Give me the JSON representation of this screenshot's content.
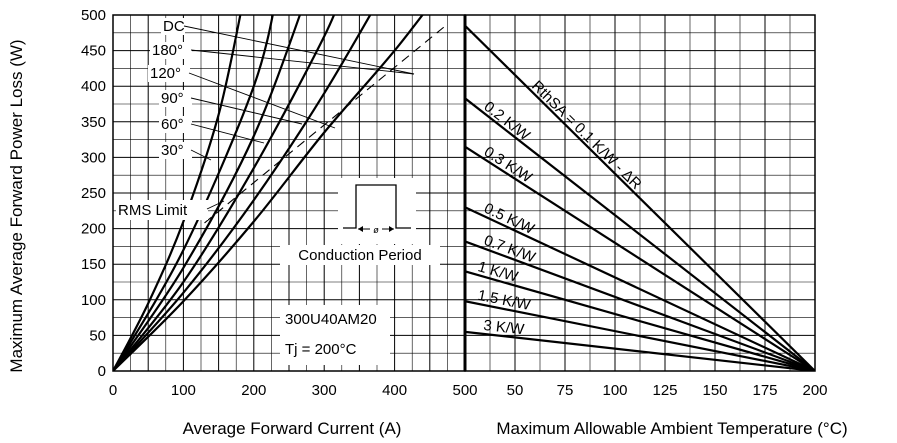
{
  "chart_data": [
    {
      "type": "line",
      "title": "",
      "xlabel": "Average Forward Current (A)",
      "ylabel": "Maximum Average Forward Power Loss (W)",
      "xlim": [
        0,
        500
      ],
      "ylim": [
        0,
        500
      ],
      "xticks": [
        0,
        100,
        200,
        300,
        400,
        500
      ],
      "yticks": [
        0,
        50,
        100,
        150,
        200,
        250,
        300,
        350,
        400,
        450,
        500
      ],
      "grid": true,
      "series": [
        {
          "name": "DC",
          "points": [
            [
              0,
              0
            ],
            [
              100,
              98
            ],
            [
              200,
              210
            ],
            [
              300,
              335
            ],
            [
              400,
              450
            ],
            [
              470,
              540
            ]
          ]
        },
        {
          "name": "180°",
          "points": [
            [
              0,
              0
            ],
            [
              100,
              110
            ],
            [
              200,
              240
            ],
            [
              300,
              390
            ],
            [
              400,
              560
            ]
          ]
        },
        {
          "name": "120°",
          "points": [
            [
              0,
              0
            ],
            [
              100,
              125
            ],
            [
              200,
              285
            ],
            [
              300,
              470
            ],
            [
              330,
              545
            ]
          ]
        },
        {
          "name": "90°",
          "points": [
            [
              0,
              0
            ],
            [
              100,
              145
            ],
            [
              200,
              330
            ],
            [
              280,
              540
            ]
          ]
        },
        {
          "name": "60°",
          "points": [
            [
              0,
              0
            ],
            [
              100,
              170
            ],
            [
              200,
              400
            ],
            [
              235,
              540
            ]
          ]
        },
        {
          "name": "30°",
          "points": [
            [
              0,
              0
            ],
            [
              50,
              95
            ],
            [
              100,
              210
            ],
            [
              150,
              360
            ],
            [
              185,
              520
            ]
          ]
        }
      ],
      "rms_limit": {
        "label": "RMS Limit",
        "points": [
          [
            130,
            208
          ],
          [
            470,
            483
          ]
        ]
      },
      "curve_labels": [
        "DC",
        "180°",
        "120°",
        "90°",
        "60°",
        "30°"
      ],
      "inset_label": "Conduction Period",
      "inset_symbol": "ø",
      "annotations": [
        "300U40AM20",
        "Tj = 200°C"
      ]
    },
    {
      "type": "line",
      "title": "",
      "xlabel": "Maximum Allowable Ambient Temperature (°C)",
      "ylabel": "",
      "xlim": [
        25,
        200
      ],
      "ylim": [
        0,
        500
      ],
      "xticks": [
        25,
        50,
        75,
        100,
        125,
        150,
        175,
        200
      ],
      "xtick_labels": [
        "",
        "50",
        "75",
        "100",
        "125",
        "150",
        "175",
        "200"
      ],
      "grid": true,
      "series": [
        {
          "name": "RthSA = 0.1 K/W - ΔR",
          "points": [
            [
              25,
              485
            ],
            [
              200,
              0
            ]
          ]
        },
        {
          "name": "0.2 K/W",
          "points": [
            [
              25,
              383
            ],
            [
              200,
              0
            ]
          ]
        },
        {
          "name": "0.3 K/W",
          "points": [
            [
              25,
              315
            ],
            [
              200,
              0
            ]
          ]
        },
        {
          "name": "0.5 K/W",
          "points": [
            [
              25,
              230
            ],
            [
              200,
              0
            ]
          ]
        },
        {
          "name": "0.7 K/W",
          "points": [
            [
              25,
              182
            ],
            [
              200,
              0
            ]
          ]
        },
        {
          "name": "1 K/W",
          "points": [
            [
              25,
              140
            ],
            [
              200,
              0
            ]
          ]
        },
        {
          "name": "1.5 K/W",
          "points": [
            [
              25,
              98
            ],
            [
              200,
              0
            ]
          ]
        },
        {
          "name": "3 K/W",
          "points": [
            [
              25,
              55
            ],
            [
              200,
              0
            ]
          ]
        }
      ]
    }
  ]
}
